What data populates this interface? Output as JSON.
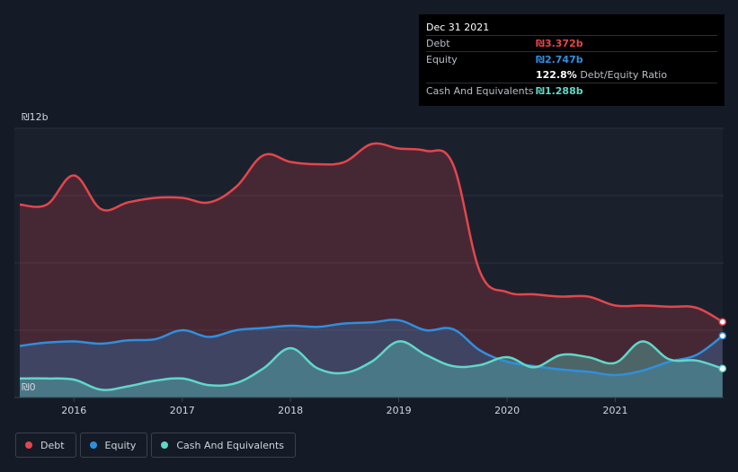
{
  "colors": {
    "debt": "#e4464c",
    "equity": "#2f8fde",
    "cash": "#5fd8c8",
    "background": "#151b26"
  },
  "tooltip": {
    "date": "Dec 31 2021",
    "debt_label": "Debt",
    "debt_value": "₪3.372b",
    "equity_label": "Equity",
    "equity_value": "₪2.747b",
    "ratio_value": "122.8%",
    "ratio_label": "Debt/Equity Ratio",
    "cash_label": "Cash And Equivalents",
    "cash_value": "₪1.288b"
  },
  "legend": [
    {
      "label": "Debt",
      "color": "#e4464c"
    },
    {
      "label": "Equity",
      "color": "#2f8fde"
    },
    {
      "label": "Cash And Equivalents",
      "color": "#5fd8c8"
    }
  ],
  "chart_data": {
    "type": "area",
    "title": "",
    "xlabel": "",
    "ylabel": "",
    "y_unit": "₪ billions",
    "ylim": [
      0,
      12
    ],
    "y_tick_labels": [
      "₪0",
      "₪12b"
    ],
    "x_ticks": [
      2016,
      2017,
      2018,
      2019,
      2020,
      2021
    ],
    "x_tick_labels": [
      "2016",
      "2017",
      "2018",
      "2019",
      "2020",
      "2021"
    ],
    "xlim": [
      2015.45,
      2022.0
    ],
    "highlight_x": 2021.99,
    "series": [
      {
        "name": "Debt",
        "x": [
          2015.5,
          2015.75,
          2016.0,
          2016.25,
          2016.5,
          2016.75,
          2017.0,
          2017.25,
          2017.5,
          2017.75,
          2018.0,
          2018.25,
          2018.5,
          2018.75,
          2019.0,
          2019.25,
          2019.5,
          2019.75,
          2020.0,
          2020.25,
          2020.5,
          2020.75,
          2021.0,
          2021.25,
          2021.5,
          2021.75,
          2021.99
        ],
        "values": [
          8.6,
          8.6,
          9.9,
          8.4,
          8.7,
          8.9,
          8.9,
          8.7,
          9.4,
          10.8,
          10.5,
          10.4,
          10.5,
          11.3,
          11.1,
          11.0,
          10.4,
          5.6,
          4.7,
          4.6,
          4.5,
          4.5,
          4.1,
          4.1,
          4.05,
          4.0,
          3.372
        ]
      },
      {
        "name": "Equity",
        "x": [
          2015.5,
          2015.75,
          2016.0,
          2016.25,
          2016.5,
          2016.75,
          2017.0,
          2017.25,
          2017.5,
          2017.75,
          2018.0,
          2018.25,
          2018.5,
          2018.75,
          2019.0,
          2019.25,
          2019.5,
          2019.75,
          2020.0,
          2020.25,
          2020.5,
          2020.75,
          2021.0,
          2021.25,
          2021.5,
          2021.75,
          2021.99
        ],
        "values": [
          2.3,
          2.45,
          2.5,
          2.4,
          2.55,
          2.6,
          3.0,
          2.7,
          3.0,
          3.1,
          3.2,
          3.15,
          3.3,
          3.35,
          3.45,
          3.0,
          3.05,
          2.1,
          1.6,
          1.4,
          1.25,
          1.15,
          1.0,
          1.2,
          1.6,
          1.9,
          2.747
        ]
      },
      {
        "name": "Cash And Equivalents",
        "x": [
          2015.5,
          2015.75,
          2016.0,
          2016.25,
          2016.5,
          2016.75,
          2017.0,
          2017.25,
          2017.5,
          2017.75,
          2018.0,
          2018.25,
          2018.5,
          2018.75,
          2019.0,
          2019.25,
          2019.5,
          2019.75,
          2020.0,
          2020.25,
          2020.5,
          2020.75,
          2021.0,
          2021.25,
          2021.5,
          2021.75,
          2021.99
        ],
        "values": [
          0.85,
          0.85,
          0.8,
          0.35,
          0.5,
          0.75,
          0.85,
          0.55,
          0.65,
          1.3,
          2.2,
          1.3,
          1.1,
          1.6,
          2.5,
          1.9,
          1.4,
          1.45,
          1.8,
          1.35,
          1.9,
          1.8,
          1.55,
          2.5,
          1.7,
          1.65,
          1.288
        ]
      }
    ]
  }
}
